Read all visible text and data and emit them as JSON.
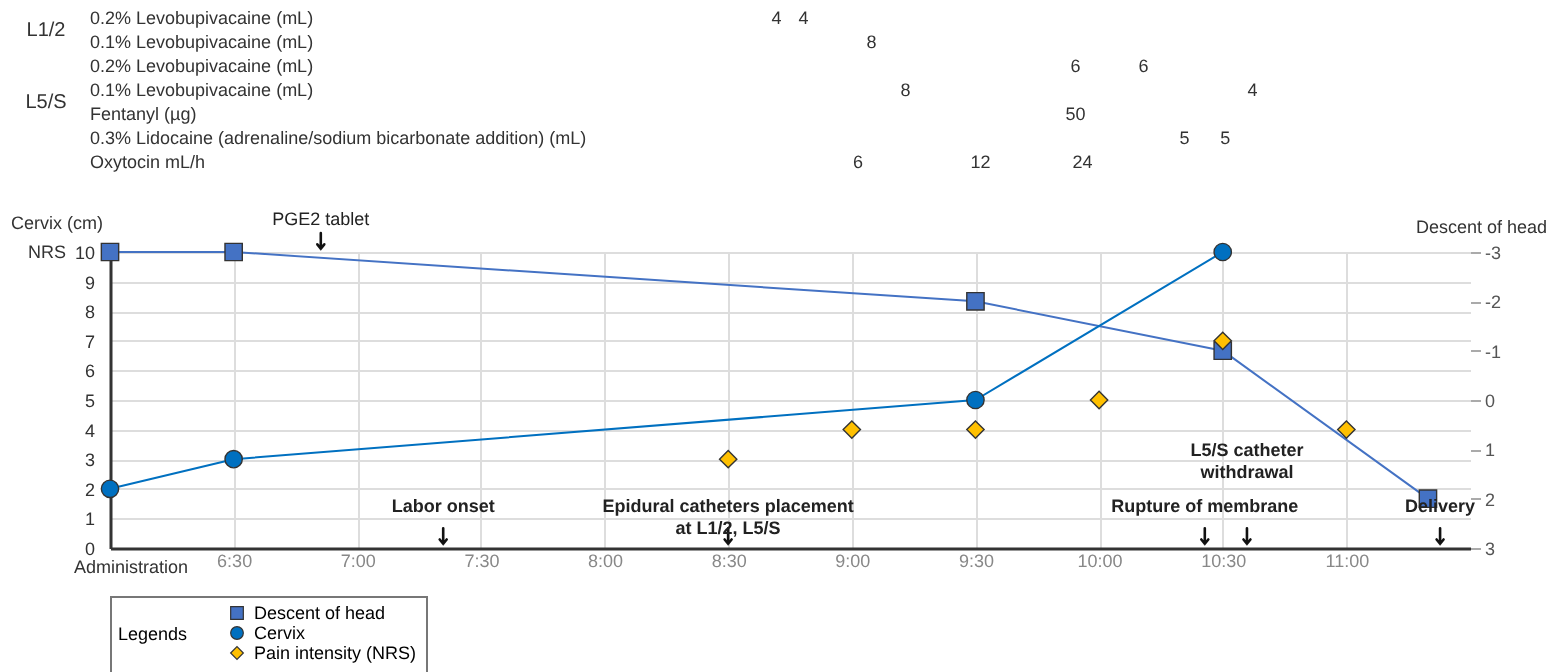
{
  "chart_data": [
    {
      "type": "other",
      "annotations": [
        "L1/2",
        "0.2% Levobupivacaine (mL)",
        "4",
        "4",
        "0.1% Levobupivacaine (mL)",
        "8",
        "L5/S",
        "0.2% Levobupivacaine (mL)",
        "6",
        "6",
        "0.1% Levobupivacaine (mL)",
        "8",
        "4",
        "Fentanyl (µg)",
        "50",
        "0.3% Lidocaine (adrenaline/sodium bicarbonate addition) (mL)",
        "5",
        "5",
        "Oxytocin mL/h",
        "6",
        "12",
        "24"
      ]
    },
    {
      "type": "line",
      "xlim": [
        6,
        11.5
      ],
      "xticks": [
        {
          "value": 6.5,
          "label": "6:30"
        },
        {
          "value": 7,
          "label": "7:00"
        },
        {
          "value": 7.5,
          "label": "7:30"
        },
        {
          "value": 8,
          "label": "8:00"
        },
        {
          "value": 8.5,
          "label": "8:30"
        },
        {
          "value": 9,
          "label": "9:00"
        },
        {
          "value": 9.5,
          "label": "9:30"
        },
        {
          "value": 10,
          "label": "10:00"
        },
        {
          "value": 10.5,
          "label": "10:30"
        },
        {
          "value": 11,
          "label": "11:00"
        }
      ],
      "ylim": [
        0,
        10
      ],
      "yticks": [
        0,
        1,
        2,
        3,
        4,
        5,
        6,
        7,
        8,
        9,
        10
      ],
      "y2lim": [
        3,
        -3
      ],
      "y2ticks": [
        3,
        2,
        1,
        0,
        -1,
        -2,
        -3
      ],
      "xlabel": "Administration",
      "ylabel": "Cervix (cm)",
      "y2label": "Descent of head",
      "grid": true,
      "legend": "bottom",
      "legend_title": "Legends",
      "series": [
        {
          "name": "Descent of head",
          "color": "#4472c4",
          "marker": "square",
          "axis": "y2",
          "x": [
            6,
            6.5,
            9.5,
            10.5,
            11.33
          ],
          "values": [
            -3,
            -3,
            -2,
            -1,
            2
          ]
        },
        {
          "name": "Cervix",
          "color": "#0070c0",
          "marker": "circle",
          "x": [
            6,
            6.5,
            9.5,
            10.5
          ],
          "values": [
            2,
            3,
            5,
            10
          ]
        },
        {
          "name": "Pain intensity (NRS)",
          "type": "scatter",
          "color": "#ffc000",
          "marker": "diamond",
          "x": [
            8.5,
            9,
            9.5,
            10,
            10.5,
            11
          ],
          "values": [
            3,
            4,
            4,
            5,
            7,
            4
          ]
        }
      ],
      "annotations": [
        "NRS",
        "PGE2 tablet",
        "Labor onset",
        "Epidural catheters placement\nat L1/2, L5/S",
        "Rupture of membrane",
        "L5/S catheter\nwithdrawal",
        "Delivery"
      ]
    }
  ]
}
